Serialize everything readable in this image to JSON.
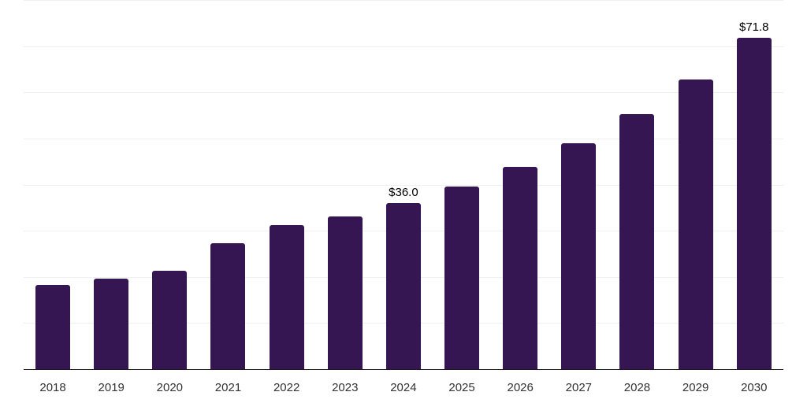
{
  "chart_data": {
    "type": "bar",
    "title": "",
    "xlabel": "",
    "ylabel": "",
    "categories": [
      "2018",
      "2019",
      "2020",
      "2021",
      "2022",
      "2023",
      "2024",
      "2025",
      "2026",
      "2027",
      "2028",
      "2029",
      "2030"
    ],
    "values": [
      18.2,
      19.6,
      21.4,
      27.3,
      31.3,
      33.1,
      36.0,
      39.5,
      43.8,
      49.0,
      55.2,
      62.8,
      71.8
    ],
    "value_labels": [
      "",
      "",
      "",
      "",
      "",
      "",
      "$36.0",
      "",
      "",
      "",
      "",
      "",
      "$71.8"
    ],
    "ylim": [
      0,
      80
    ],
    "gridline_values": [
      10,
      20,
      30,
      40,
      50,
      60,
      70,
      80
    ],
    "grid": true,
    "legend": null,
    "colors": {
      "bar": "#361553",
      "gridline": "#f0f0f0",
      "axis_line": "#1a1a1a",
      "tick_label": "#333333",
      "value_label": "#000000",
      "background": "#ffffff"
    }
  }
}
